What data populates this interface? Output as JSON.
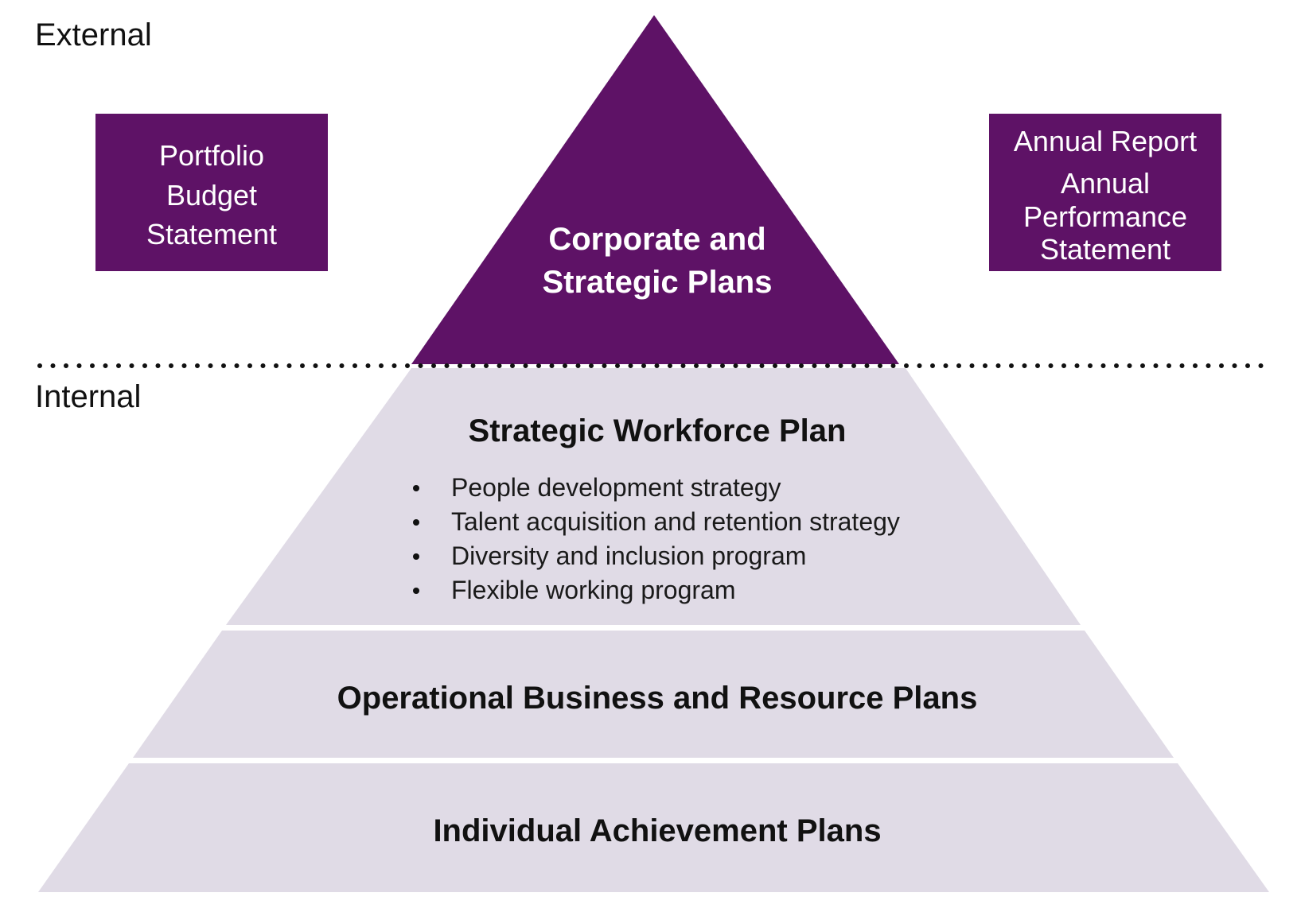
{
  "colors": {
    "purple": "#5e1266",
    "lavender": "#e0dbe6",
    "text_dark": "#111111",
    "text_light": "#ffffff",
    "dots": "#111111"
  },
  "zones": {
    "external": "External",
    "internal": "Internal"
  },
  "left_box": {
    "lines": [
      "Portfolio",
      "Budget",
      "Statement"
    ]
  },
  "right_box": {
    "lines": [
      "Annual Report",
      "Annual",
      "Performance",
      "Statement"
    ]
  },
  "apex": {
    "lines": [
      "Corporate and",
      "Strategic Plans"
    ]
  },
  "tiers": [
    {
      "title": "Strategic Workforce Plan",
      "bullets": [
        "People development strategy",
        "Talent acquisition and retention strategy",
        "Diversity and inclusion program",
        "Flexible working program"
      ]
    },
    {
      "title": "Operational Business and Resource Plans",
      "bullets": []
    },
    {
      "title": "Individual Achievement Plans",
      "bullets": []
    }
  ]
}
